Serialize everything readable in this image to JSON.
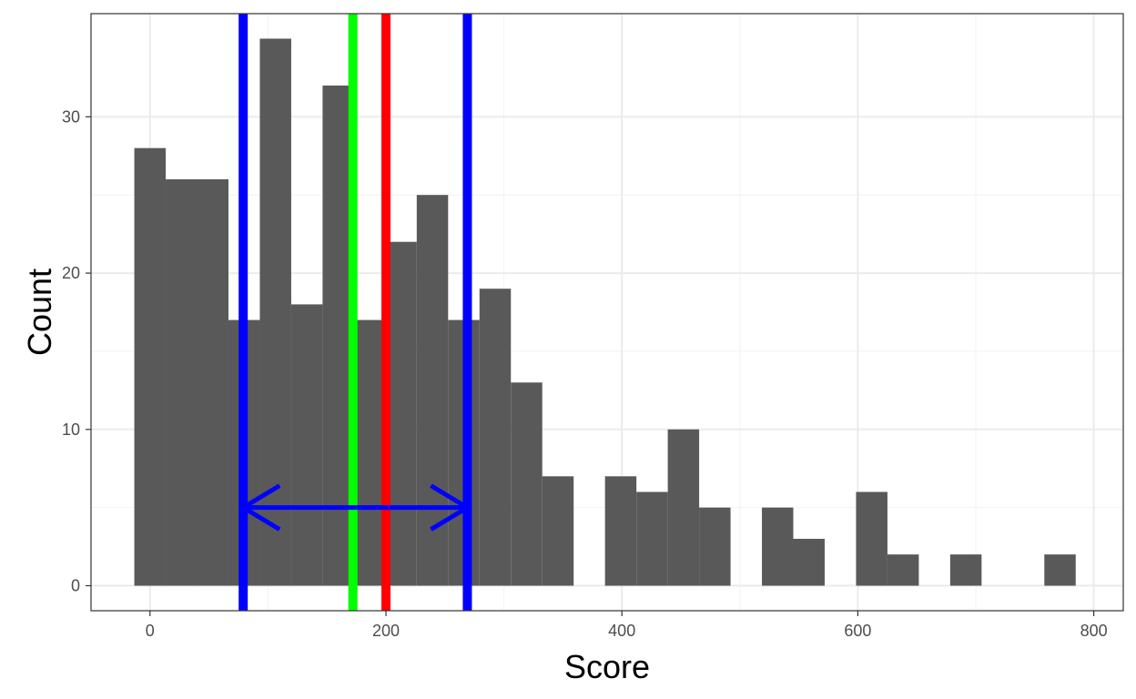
{
  "chart_data": {
    "type": "bar",
    "xlabel": "Score",
    "ylabel": "Count",
    "xlim": [
      -50,
      825
    ],
    "ylim": [
      -1.6,
      36.6
    ],
    "x_ticks": [
      0,
      200,
      400,
      600,
      800
    ],
    "y_ticks": [
      0,
      10,
      20,
      30
    ],
    "bin_width": 26.6,
    "bins": [
      {
        "x": 0,
        "count": 28
      },
      {
        "x": 26.6,
        "count": 26
      },
      {
        "x": 53.2,
        "count": 26
      },
      {
        "x": 79.8,
        "count": 17
      },
      {
        "x": 106.4,
        "count": 35
      },
      {
        "x": 133,
        "count": 18
      },
      {
        "x": 159.6,
        "count": 32
      },
      {
        "x": 186.2,
        "count": 17
      },
      {
        "x": 212.8,
        "count": 22
      },
      {
        "x": 239.4,
        "count": 25
      },
      {
        "x": 266,
        "count": 17
      },
      {
        "x": 292.6,
        "count": 19
      },
      {
        "x": 319.2,
        "count": 13
      },
      {
        "x": 345.8,
        "count": 7
      },
      {
        "x": 372.4,
        "count": 0
      },
      {
        "x": 399,
        "count": 7
      },
      {
        "x": 425.6,
        "count": 6
      },
      {
        "x": 452.2,
        "count": 10
      },
      {
        "x": 478.8,
        "count": 5
      },
      {
        "x": 505.4,
        "count": 0
      },
      {
        "x": 532,
        "count": 5
      },
      {
        "x": 558.6,
        "count": 3
      },
      {
        "x": 585.2,
        "count": 0
      },
      {
        "x": 611.8,
        "count": 6
      },
      {
        "x": 638.4,
        "count": 2
      },
      {
        "x": 665,
        "count": 0
      },
      {
        "x": 691.6,
        "count": 2
      },
      {
        "x": 718.2,
        "count": 0
      },
      {
        "x": 744.8,
        "count": 0
      },
      {
        "x": 771.4,
        "count": 2
      }
    ],
    "reference_lines": [
      {
        "x": 79,
        "color": "#0000ff"
      },
      {
        "x": 172,
        "color": "#00ff00"
      },
      {
        "x": 200,
        "color": "#ff0000"
      },
      {
        "x": 269,
        "color": "#0000ff"
      }
    ],
    "arrow": {
      "x_start": 79,
      "x_end": 269,
      "y": 5,
      "color": "#0000ff"
    },
    "bar_color": "#595959",
    "grid": true
  }
}
